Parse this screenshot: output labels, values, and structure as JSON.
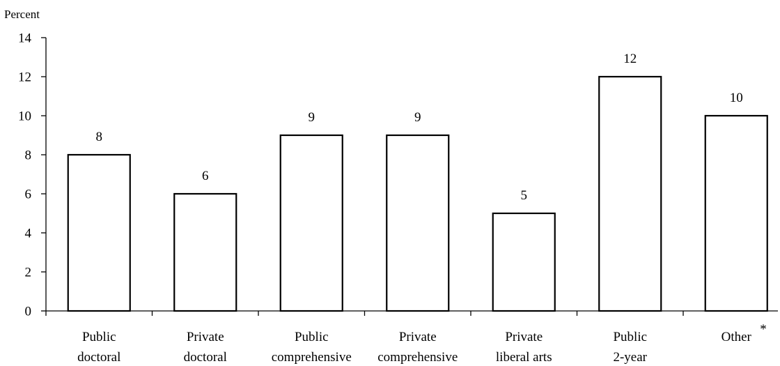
{
  "chart_data": {
    "type": "bar",
    "ylabel": "Percent",
    "ylim": [
      0,
      14
    ],
    "yticks": [
      "0",
      "2",
      "4",
      "6",
      "8",
      "10",
      "12",
      "14"
    ],
    "grid": false,
    "categories": [
      [
        "Public",
        "doctoral"
      ],
      [
        "Private",
        "doctoral"
      ],
      [
        "Public",
        "comprehensive"
      ],
      [
        "Private",
        "comprehensive"
      ],
      [
        "Private",
        "liberal arts"
      ],
      [
        "Public",
        "2-year"
      ],
      [
        "Other"
      ]
    ],
    "category_markers": [
      "",
      "",
      "",
      "",
      "",
      "",
      "*"
    ],
    "values": [
      8,
      6,
      9,
      9,
      5,
      12,
      10
    ],
    "value_labels": [
      "8",
      "6",
      "9",
      "9",
      "5",
      "12",
      "10"
    ]
  }
}
